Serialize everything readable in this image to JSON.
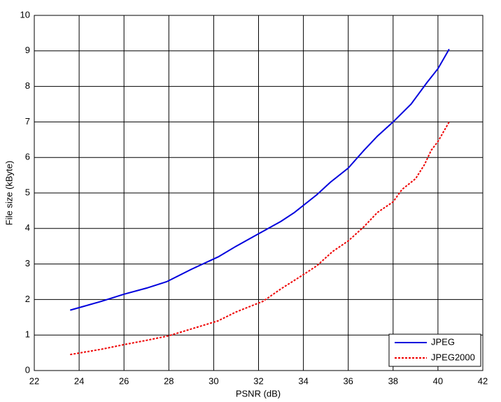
{
  "chart_data": {
    "type": "line",
    "xlabel": "PSNR (dB)",
    "ylabel": "File size (kByte)",
    "xlim": [
      22,
      42
    ],
    "xticks": [
      22,
      24,
      26,
      28,
      30,
      32,
      34,
      36,
      38,
      40,
      42
    ],
    "ylim": [
      0,
      10
    ],
    "yticks": [
      0,
      1,
      2,
      3,
      4,
      5,
      6,
      7,
      8,
      9,
      10
    ],
    "grid": true,
    "legend": "lower-right",
    "series": [
      {
        "name": "JPEG",
        "color": "#0000dd",
        "line_style": "solid",
        "x": [
          23.6,
          25,
          26,
          27,
          27.9,
          29,
          30.2,
          31,
          32,
          33,
          33.6,
          34.6,
          35.2,
          36,
          36.7,
          37.3,
          38,
          38.8,
          39.5,
          40,
          40.5
        ],
        "values": [
          1.7,
          1.95,
          2.15,
          2.32,
          2.5,
          2.85,
          3.2,
          3.5,
          3.85,
          4.2,
          4.45,
          4.95,
          5.3,
          5.7,
          6.2,
          6.6,
          7.0,
          7.5,
          8.1,
          8.5,
          9.05
        ]
      },
      {
        "name": "JPEG2000",
        "color": "#ee0000",
        "line_style": "dotted",
        "x": [
          23.6,
          25,
          26,
          27,
          28,
          29,
          30.2,
          31,
          32.2,
          33,
          34,
          34.6,
          35.3,
          36,
          36.7,
          37.3,
          38,
          38.4,
          39,
          39.4,
          39.7,
          40,
          40.5
        ],
        "values": [
          0.45,
          0.6,
          0.73,
          0.85,
          0.98,
          1.17,
          1.4,
          1.65,
          1.95,
          2.3,
          2.7,
          2.95,
          3.35,
          3.65,
          4.05,
          4.45,
          4.75,
          5.1,
          5.4,
          5.8,
          6.2,
          6.45,
          7.0
        ]
      }
    ]
  }
}
